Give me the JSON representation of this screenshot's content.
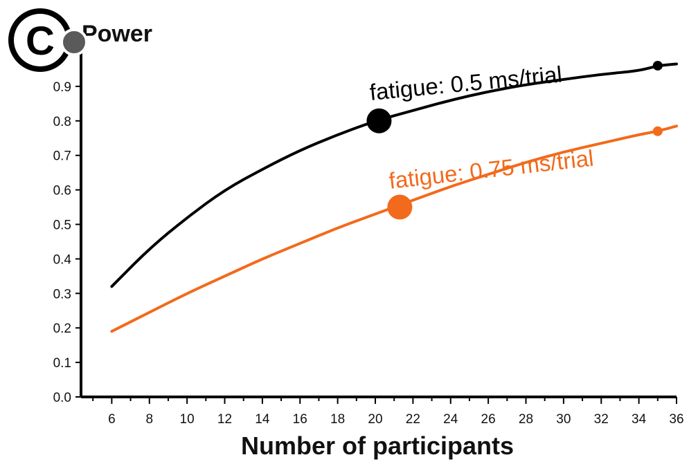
{
  "panel": {
    "letter": "C"
  },
  "chart_data": {
    "type": "line",
    "ylabel": "Power",
    "xlabel": "Number of participants",
    "xlim": [
      4,
      36
    ],
    "ylim": [
      0,
      1.0
    ],
    "x_ticks": [
      6,
      8,
      10,
      12,
      14,
      16,
      18,
      20,
      22,
      24,
      26,
      28,
      30,
      32,
      34,
      36
    ],
    "y_ticks": [
      "0.0",
      "0.1",
      "0.2",
      "0.3",
      "0.4",
      "0.5",
      "0.6",
      "0.7",
      "0.8",
      "0.9"
    ],
    "series": [
      {
        "name": "fatigue: 0.5 ms/trial",
        "color": "#000000",
        "x": [
          6,
          8,
          10,
          12,
          14,
          16,
          18,
          20,
          22,
          24,
          26,
          28,
          30,
          32,
          34,
          35,
          36
        ],
        "y": [
          0.32,
          0.43,
          0.52,
          0.6,
          0.66,
          0.715,
          0.76,
          0.8,
          0.83,
          0.86,
          0.885,
          0.905,
          0.92,
          0.935,
          0.945,
          0.96,
          0.965
        ],
        "big_marker": {
          "x": 20.2,
          "y": 0.8
        },
        "small_marker": {
          "x": 35,
          "y": 0.96
        }
      },
      {
        "name": "fatigue: 0.75 ms/trial",
        "color": "#f26a1b",
        "x": [
          6,
          8,
          10,
          12,
          14,
          16,
          18,
          20,
          22,
          24,
          26,
          28,
          30,
          32,
          34,
          35,
          36
        ],
        "y": [
          0.19,
          0.245,
          0.3,
          0.35,
          0.4,
          0.445,
          0.49,
          0.53,
          0.57,
          0.61,
          0.645,
          0.68,
          0.71,
          0.735,
          0.76,
          0.77,
          0.785
        ],
        "big_marker": {
          "x": 21.3,
          "y": 0.55
        },
        "small_marker": {
          "x": 35,
          "y": 0.77
        }
      }
    ]
  }
}
